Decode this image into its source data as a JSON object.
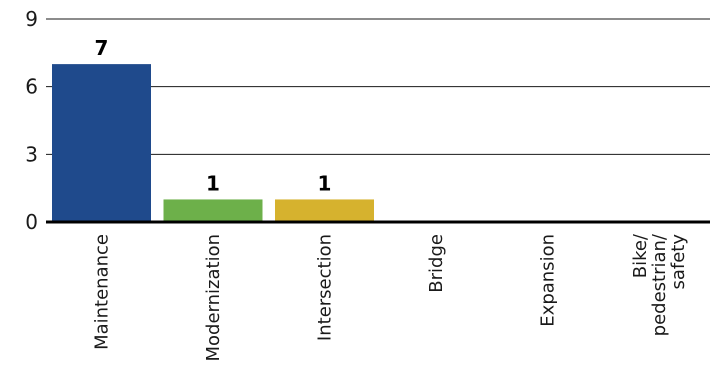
{
  "chart_data": {
    "type": "bar",
    "categories": [
      "Maintenance",
      "Modernization",
      "Intersection",
      "Bridge",
      "Expansion",
      "Bike/ pedestrian/ safety"
    ],
    "category_label_lines": [
      [
        "Maintenance"
      ],
      [
        "Modernization"
      ],
      [
        "Intersection"
      ],
      [
        "Bridge"
      ],
      [
        "Expansion"
      ],
      [
        "Bike/",
        "pedestrian/",
        "safety"
      ]
    ],
    "values": [
      7,
      1,
      1,
      0,
      0,
      0
    ],
    "data_labels": [
      "7",
      "1",
      "1",
      "",
      "",
      ""
    ],
    "bar_colors": [
      "#1f4a8c",
      "#6db04a",
      "#d6b22e",
      "#1f4a8c",
      "#1f4a8c",
      "#1f4a8c"
    ],
    "ylim": [
      0,
      9
    ],
    "yticks": [
      0,
      3,
      6,
      9
    ],
    "ytick_labels": [
      "0",
      "3",
      "6",
      "9"
    ],
    "grid": true,
    "title": "",
    "xlabel": "",
    "ylabel": ""
  }
}
